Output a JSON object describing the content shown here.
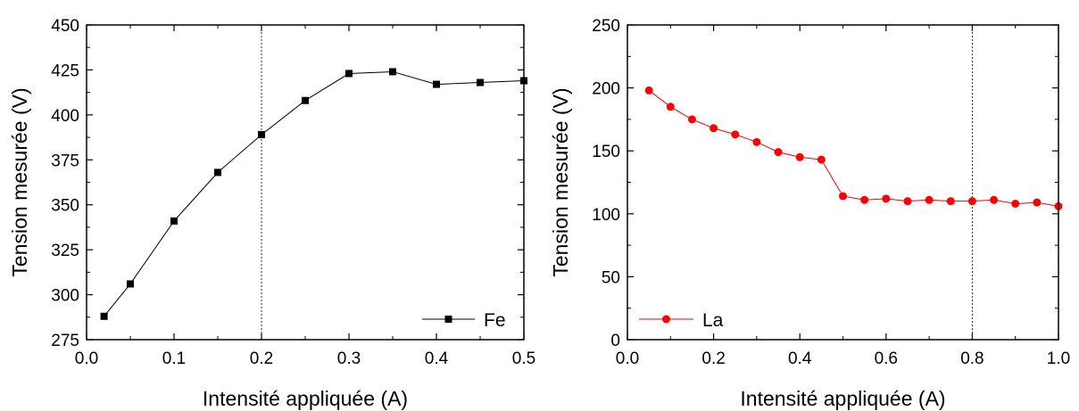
{
  "chart_data": [
    {
      "type": "line",
      "xlabel": "Intensité appliquée (A)",
      "ylabel": "Tension mesurée (V)",
      "xlim": [
        0.0,
        0.5
      ],
      "ylim": [
        275,
        450
      ],
      "x_ticks": [
        "0.0",
        "0.1",
        "0.2",
        "0.3",
        "0.4",
        "0.5"
      ],
      "y_ticks": [
        "275",
        "300",
        "325",
        "350",
        "375",
        "400",
        "425",
        "450"
      ],
      "grid": false,
      "vertical_reference_line": 0.2,
      "legend_position": "bottom-right",
      "series": [
        {
          "name": "Fe",
          "marker": "square",
          "color": "#000000",
          "x": [
            0.02,
            0.05,
            0.1,
            0.15,
            0.2,
            0.25,
            0.3,
            0.35,
            0.4,
            0.45,
            0.5
          ],
          "y": [
            288,
            306,
            341,
            368,
            389,
            408,
            423,
            424,
            417,
            418,
            419
          ]
        }
      ]
    },
    {
      "type": "line",
      "xlabel": "Intensité appliquée (A)",
      "ylabel": "Tension mesurée (V)",
      "xlim": [
        0.0,
        1.0
      ],
      "ylim": [
        0,
        250
      ],
      "x_ticks": [
        "0.0",
        "0.2",
        "0.4",
        "0.6",
        "0.8",
        "1.0"
      ],
      "y_ticks": [
        "0",
        "50",
        "100",
        "150",
        "200",
        "250"
      ],
      "grid": false,
      "vertical_reference_line": 0.8,
      "legend_position": "bottom-left",
      "series": [
        {
          "name": "La",
          "marker": "circle",
          "color": "#ff0000",
          "x": [
            0.05,
            0.1,
            0.15,
            0.2,
            0.25,
            0.3,
            0.35,
            0.4,
            0.45,
            0.5,
            0.55,
            0.6,
            0.65,
            0.7,
            0.75,
            0.8,
            0.85,
            0.9,
            0.95,
            1.0
          ],
          "y": [
            198,
            185,
            175,
            168,
            163,
            157,
            149,
            145,
            143,
            114,
            111,
            112,
            110,
            111,
            110,
            110,
            111,
            108,
            109,
            106
          ]
        }
      ]
    }
  ]
}
